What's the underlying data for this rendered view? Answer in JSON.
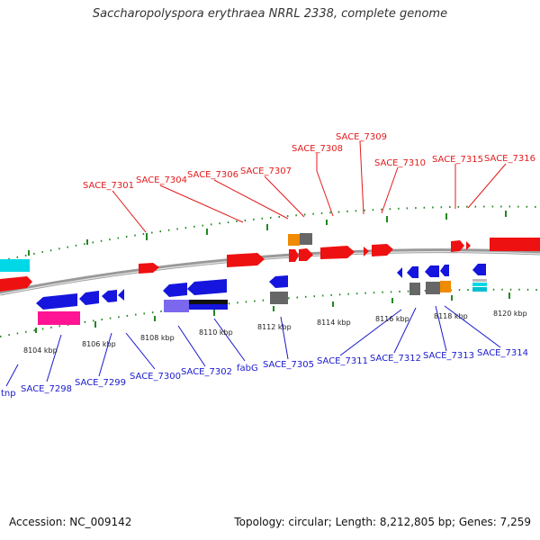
{
  "title": "Saccharopolyspora erythraea NRRL 2338, complete genome",
  "footer": {
    "accession": "Accession: NC_009142",
    "info": "Topology: circular; Length: 8,212,805 bp; Genes: 7,259"
  },
  "colors": {
    "forward": "#ee1111",
    "reverse": "#1515dd",
    "backbone": "#888888",
    "tick": "#228822",
    "label_forward": "#e41a1c",
    "label_reverse": "#1a1acd",
    "leader_forward": "#e41a1c",
    "leader_reverse": "#1a1acd"
  },
  "scale_labels": [
    "8104 kbp",
    "8106 kbp",
    "8108 kbp",
    "8110 kbp",
    "8112 kbp",
    "8114 kbp",
    "8116 kbp",
    "8118 kbp",
    "8120 kbp"
  ],
  "forward_labels": [
    "SACE_7301",
    "SACE_7304",
    "SACE_7306",
    "SACE_7307",
    "SACE_7308",
    "SACE_7309",
    "SACE_7310",
    "SACE_7315",
    "SACE_7316"
  ],
  "reverse_labels": [
    "tnp",
    "SACE_7298",
    "SACE_7299",
    "SACE_7300",
    "SACE_7302",
    "fabG",
    "SACE_7305",
    "SACE_7311",
    "SACE_7312",
    "SACE_7313",
    "SACE_7314"
  ]
}
